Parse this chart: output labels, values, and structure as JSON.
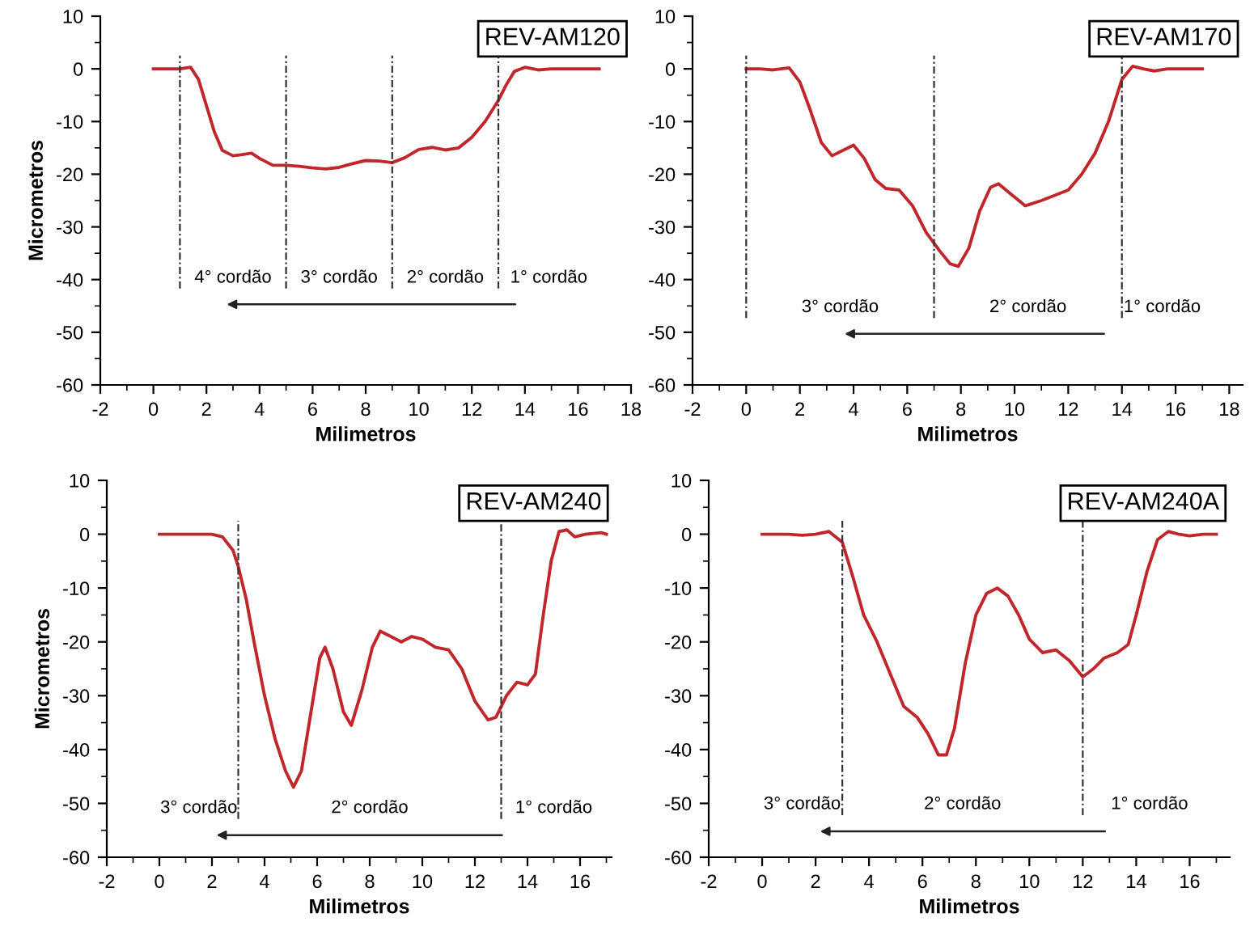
{
  "chart_data": [
    {
      "type": "line",
      "title": "REV-AM120",
      "xlabel": "Milimetros",
      "ylabel": "Micrometros",
      "xlim": [
        -2,
        18
      ],
      "ylim": [
        -60,
        10
      ],
      "xticks": [
        -2,
        0,
        2,
        4,
        6,
        8,
        10,
        12,
        14,
        16,
        18
      ],
      "yticks": [
        -60,
        -50,
        -40,
        -30,
        -20,
        -10,
        0,
        10
      ],
      "series": [
        {
          "color": "#c0262a",
          "x": [
            0,
            0.5,
            1,
            1.4,
            1.7,
            2,
            2.3,
            2.6,
            3,
            3.3,
            3.7,
            4,
            4.5,
            5,
            5.5,
            6,
            6.5,
            7,
            7.5,
            8,
            8.5,
            9,
            9.5,
            10,
            10.5,
            11,
            11.5,
            12,
            12.5,
            13,
            13.3,
            13.6,
            14,
            14.5,
            15,
            16,
            16.8
          ],
          "values": [
            0,
            0,
            0,
            0.3,
            -2,
            -7,
            -12,
            -15.5,
            -16.5,
            -16.3,
            -16,
            -17,
            -18.3,
            -18.3,
            -18.5,
            -18.8,
            -19,
            -18.7,
            -18,
            -17.4,
            -17.5,
            -17.8,
            -16.8,
            -15.3,
            -14.9,
            -15.4,
            -15,
            -13,
            -10,
            -6,
            -3,
            -0.5,
            0.3,
            -0.2,
            0,
            0,
            0
          ]
        }
      ],
      "ref_lines": [
        {
          "axis": "x",
          "value": 1,
          "color": "#333333",
          "line_style": "dashed"
        },
        {
          "axis": "x",
          "value": 5,
          "color": "#333333",
          "line_style": "dashed"
        },
        {
          "axis": "x",
          "value": 9,
          "color": "#333333",
          "line_style": "dashed"
        },
        {
          "axis": "x",
          "value": 13,
          "color": "#333333",
          "line_style": "dashed"
        }
      ],
      "annotations": [
        "4° cordão",
        "3° cordão",
        "2° cordão",
        "1° cordão"
      ]
    },
    {
      "type": "line",
      "title": "REV-AM170",
      "xlabel": "Milimetros",
      "xlim": [
        -2,
        18.5
      ],
      "ylim": [
        -60,
        10
      ],
      "xticks": [
        -2,
        0,
        2,
        4,
        6,
        8,
        10,
        12,
        14,
        16,
        18
      ],
      "yticks": [
        -60,
        -50,
        -40,
        -30,
        -20,
        -10,
        0,
        10
      ],
      "series": [
        {
          "color": "#c0262a",
          "x": [
            0,
            0.5,
            1,
            1.6,
            2,
            2.4,
            2.8,
            3.2,
            3.6,
            4,
            4.4,
            4.8,
            5.2,
            5.7,
            6.2,
            6.7,
            7.2,
            7.6,
            7.9,
            8.3,
            8.7,
            9.1,
            9.4,
            9.8,
            10.4,
            11,
            11.5,
            12,
            12.5,
            13,
            13.5,
            14,
            14.4,
            14.8,
            15.2,
            15.7,
            16.5,
            17
          ],
          "values": [
            0,
            0,
            -0.2,
            0.2,
            -2.5,
            -8,
            -14,
            -16.5,
            -15.5,
            -14.5,
            -17,
            -21,
            -22.7,
            -23,
            -26,
            -31,
            -34.5,
            -37,
            -37.5,
            -34,
            -27,
            -22.5,
            -21.8,
            -23.5,
            -26,
            -25,
            -24,
            -23,
            -20,
            -16,
            -10,
            -2,
            0.5,
            0,
            -0.4,
            0,
            0,
            0
          ]
        }
      ],
      "ref_lines": [
        {
          "axis": "x",
          "value": 0,
          "color": "#333333",
          "line_style": "dashed"
        },
        {
          "axis": "x",
          "value": 7,
          "color": "#333333",
          "line_style": "dashed"
        },
        {
          "axis": "x",
          "value": 14,
          "color": "#333333",
          "line_style": "dashed"
        }
      ],
      "annotations": [
        "3° cordão",
        "2° cordão",
        "1° cordão"
      ]
    },
    {
      "type": "line",
      "title": "REV-AM240",
      "xlabel": "Milimetros",
      "ylabel": "Micrometros",
      "xlim": [
        -2,
        17.2
      ],
      "ylim": [
        -60,
        10
      ],
      "xticks": [
        -2,
        0,
        2,
        4,
        6,
        8,
        10,
        12,
        14,
        16
      ],
      "yticks": [
        -60,
        -50,
        -40,
        -30,
        -20,
        -10,
        0,
        10
      ],
      "series": [
        {
          "color": "#c0262a",
          "x": [
            0,
            1,
            2,
            2.4,
            2.8,
            3,
            3.3,
            3.6,
            4,
            4.4,
            4.8,
            5.1,
            5.4,
            5.8,
            6.1,
            6.3,
            6.6,
            7,
            7.3,
            7.7,
            8.1,
            8.4,
            8.8,
            9.2,
            9.6,
            10,
            10.5,
            11,
            11.5,
            12,
            12.5,
            12.8,
            13.2,
            13.6,
            14,
            14.3,
            14.6,
            14.9,
            15.2,
            15.5,
            15.8,
            16.2,
            16.8,
            17
          ],
          "values": [
            0,
            0,
            0,
            -0.5,
            -3,
            -6,
            -12,
            -20,
            -30,
            -38,
            -44,
            -47,
            -44,
            -32,
            -23,
            -21,
            -25,
            -33,
            -35.5,
            -29,
            -21,
            -18,
            -19,
            -20,
            -19,
            -19.5,
            -21,
            -21.5,
            -25,
            -31,
            -34.5,
            -34,
            -30,
            -27.5,
            -28,
            -26,
            -15,
            -5,
            0.5,
            0.8,
            -0.5,
            0,
            0.3,
            0
          ]
        }
      ],
      "ref_lines": [
        {
          "axis": "x",
          "value": 3,
          "color": "#333333",
          "line_style": "dashed"
        },
        {
          "axis": "x",
          "value": 13,
          "color": "#333333",
          "line_style": "dashed"
        }
      ],
      "annotations": [
        "3° cordão",
        "2° cordão",
        "1° cordão"
      ]
    },
    {
      "type": "line",
      "title": "REV-AM240A",
      "xlabel": "Milimetros",
      "xlim": [
        -2,
        17.5
      ],
      "ylim": [
        -60,
        10
      ],
      "xticks": [
        -2,
        0,
        2,
        4,
        6,
        8,
        10,
        12,
        14,
        16
      ],
      "yticks": [
        -60,
        -50,
        -40,
        -30,
        -20,
        -10,
        0,
        10
      ],
      "series": [
        {
          "color": "#c0262a",
          "x": [
            0,
            1,
            1.5,
            2,
            2.5,
            3,
            3.4,
            3.8,
            4.3,
            4.8,
            5.3,
            5.8,
            6.2,
            6.6,
            6.9,
            7.2,
            7.6,
            8,
            8.4,
            8.8,
            9.2,
            9.6,
            10,
            10.5,
            11,
            11.5,
            12,
            12.4,
            12.8,
            13.3,
            13.7,
            14,
            14.4,
            14.8,
            15.2,
            15.6,
            16,
            16.5,
            17
          ],
          "values": [
            0,
            0,
            -0.2,
            0,
            0.5,
            -1.5,
            -8,
            -15,
            -20,
            -26,
            -32,
            -34,
            -37,
            -41,
            -41,
            -36,
            -24,
            -15,
            -11,
            -10,
            -11.5,
            -15,
            -19.5,
            -22,
            -21.5,
            -23.5,
            -26.5,
            -25,
            -23,
            -22,
            -20.5,
            -15,
            -7,
            -1,
            0.5,
            0,
            -0.3,
            0,
            0
          ]
        }
      ],
      "ref_lines": [
        {
          "axis": "x",
          "value": 3,
          "color": "#333333",
          "line_style": "dashed"
        },
        {
          "axis": "x",
          "value": 12,
          "color": "#333333",
          "line_style": "dashed"
        }
      ],
      "annotations": [
        "3° cordão",
        "2° cordão",
        "1° cordão"
      ]
    }
  ]
}
